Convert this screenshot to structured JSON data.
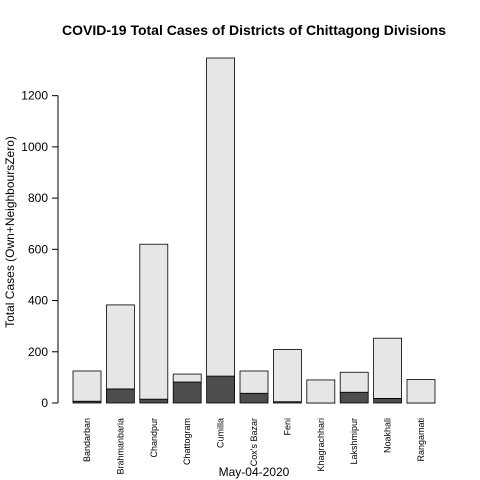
{
  "chart_data": {
    "type": "bar",
    "title": "COVID-19 Total Cases of Districts of Chittagong Divisions",
    "xlabel": "May-04-2020",
    "ylabel": "Total Cases (Own+NeighboursZero)",
    "ylim": [
      0,
      1350
    ],
    "yticks": [
      0,
      200,
      400,
      600,
      800,
      1000,
      1200
    ],
    "grid": false,
    "stacked": true,
    "categories": [
      "Bandarban",
      "Brahmanbaria",
      "Chandpur",
      "Chattogram",
      "Cumilla",
      "Cox's Bazar",
      "Feni",
      "Khagrachhari",
      "Lakshmipur",
      "Noakhali",
      "Rangamati"
    ],
    "series": [
      {
        "values": [
          7,
          55,
          15,
          82,
          105,
          38,
          5,
          0,
          42,
          18,
          0
        ],
        "color": "#4d4d4d"
      },
      {
        "values": [
          118,
          328,
          605,
          31,
          1242,
          87,
          204,
          90,
          78,
          235,
          92
        ],
        "color": "#e6e6e6"
      }
    ],
    "totals": [
      125,
      383,
      620,
      113,
      1347,
      125,
      209,
      90,
      120,
      253,
      92
    ]
  }
}
